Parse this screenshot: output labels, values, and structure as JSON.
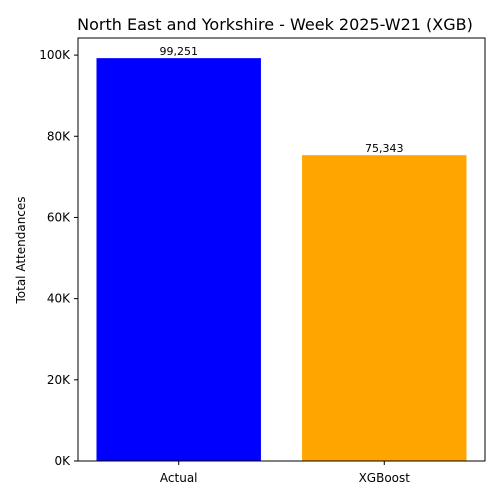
{
  "chart_data": {
    "type": "bar",
    "title": "North East and Yorkshire - Week 2025-W21 (XGB)",
    "xlabel": "",
    "ylabel": "Total Attendances",
    "categories": [
      "Actual",
      "XGBoost"
    ],
    "values": [
      99251,
      75343
    ],
    "value_labels": [
      "99,251",
      "75,343"
    ],
    "colors": [
      "#0000ff",
      "#ffa500"
    ],
    "ylim": [
      0,
      104213
    ],
    "yticks": [
      0,
      20000,
      40000,
      60000,
      80000,
      100000
    ],
    "ytick_labels": [
      "0K",
      "20K",
      "40K",
      "60K",
      "80K",
      "100K"
    ],
    "grid": false,
    "legend": "none"
  }
}
